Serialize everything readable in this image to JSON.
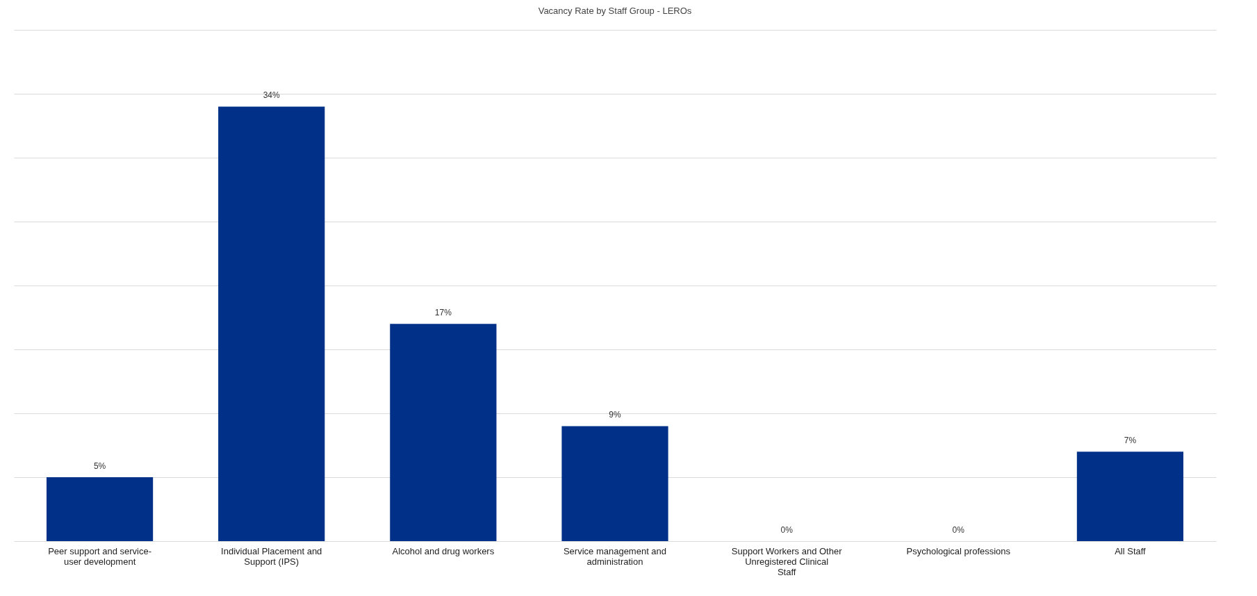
{
  "chart_data": {
    "type": "bar",
    "title": "Vacancy Rate by Staff Group - LEROs",
    "categories": [
      "Peer support and service-user development",
      "Individual Placement and Support (IPS)",
      "Alcohol and drug workers",
      "Service management and administration",
      "Support Workers and Other Unregistered Clinical Staff",
      "Psychological professions",
      "All Staff"
    ],
    "values": [
      5,
      34,
      17,
      9,
      0,
      0,
      7
    ],
    "value_labels": [
      "5%",
      "34%",
      "17%",
      "9%",
      "0%",
      "0%",
      "7%"
    ],
    "color": "#003087",
    "ylim": [
      0,
      40
    ],
    "yticks": [
      {
        "value": 0,
        "label": null
      },
      {
        "value": 5,
        "label": null
      },
      {
        "value": 10,
        "label": null
      },
      {
        "value": 15,
        "label": null
      },
      {
        "value": 20,
        "label": null
      },
      {
        "value": 25,
        "label": null
      },
      {
        "value": 30,
        "label": null
      },
      {
        "value": 35,
        "label": null
      },
      {
        "value": 40,
        "label": null
      }
    ],
    "grid": "y",
    "tick_labels": "x"
  }
}
